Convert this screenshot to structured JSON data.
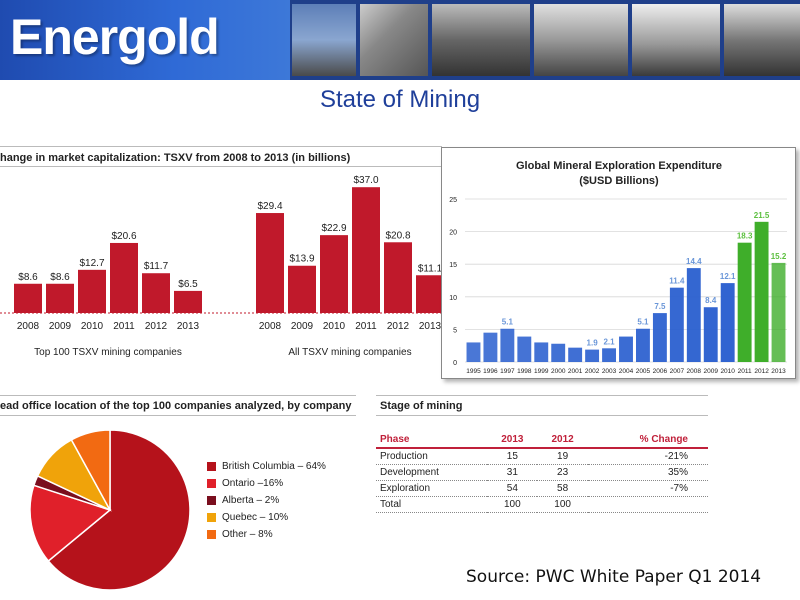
{
  "header": {
    "logo_text": "Energold"
  },
  "page": {
    "title": "State of Mining",
    "source": "Source: PWC White Paper Q1 2014"
  },
  "tsxv": {
    "title": "hange in market capitalization: TSXV from 2008 to 2013 (in billions)",
    "colors": {
      "bar": "#c0192b"
    }
  },
  "pie_section": {
    "title": "ead office location of the top 100 companies analyzed, by company"
  },
  "stage": {
    "title": "Stage of mining",
    "headers": [
      "Phase",
      "2013",
      "2012",
      "% Change"
    ],
    "rows": [
      [
        "Production",
        "15",
        "19",
        "-21%"
      ],
      [
        "Development",
        "31",
        "23",
        "35%"
      ],
      [
        "Exploration",
        "54",
        "58",
        "-7%"
      ],
      [
        "Total",
        "100",
        "100",
        ""
      ]
    ]
  },
  "chart_data": [
    {
      "type": "bar",
      "categories": [
        "2008",
        "2009",
        "2010",
        "2011",
        "2012",
        "2013"
      ],
      "values": [
        8.6,
        8.6,
        12.7,
        20.6,
        11.7,
        6.5
      ],
      "value_labels": [
        "$8.6",
        "$8.6",
        "$12.7",
        "$20.6",
        "$11.7",
        "$6.5"
      ],
      "xlabel": "Top 100 TSXV mining companies",
      "color": "#c0192b"
    },
    {
      "type": "bar",
      "categories": [
        "2008",
        "2009",
        "2010",
        "2011",
        "2012",
        "2013"
      ],
      "values": [
        29.4,
        13.9,
        22.9,
        37.0,
        20.8,
        11.1
      ],
      "value_labels": [
        "$29.4",
        "$13.9",
        "$22.9",
        "$37.0",
        "$20.8",
        "$11.1"
      ],
      "xlabel": "All TSXV mining companies",
      "color": "#c0192b"
    },
    {
      "type": "bar",
      "title": "Global Mineral Exploration Expenditure",
      "subtitle": "($USD Billions)",
      "categories": [
        "1995",
        "1996",
        "1997",
        "1998",
        "1999",
        "2000",
        "2001",
        "2002",
        "2003",
        "2004",
        "2005",
        "2006",
        "2007",
        "2008",
        "2009",
        "2010",
        "2011",
        "2012",
        "2013"
      ],
      "values": [
        3.0,
        4.5,
        5.1,
        3.9,
        3.0,
        2.8,
        2.2,
        1.9,
        2.1,
        3.9,
        5.1,
        7.5,
        11.4,
        14.4,
        8.4,
        12.1,
        18.3,
        21.5,
        15.2
      ],
      "value_labels": [
        "",
        "",
        "5.1",
        "",
        "",
        "",
        "",
        "1.9",
        "2.1",
        "",
        "5.1",
        "7.5",
        "11.4",
        "14.4",
        "8.4",
        "12.1",
        "18.3",
        "21.5",
        "15.2"
      ],
      "ylim": [
        0,
        25
      ],
      "yticks": [
        "0",
        "5",
        "10",
        "15",
        "20",
        "25"
      ],
      "grid": true,
      "colors": {
        "blue": "#2a5fcf",
        "green": "#3fae2a",
        "label": "#6a96d8"
      }
    },
    {
      "type": "pie",
      "labels": [
        "British Columbia – 64%",
        "Ontario –16%",
        "Alberta – 2%",
        "Quebec – 10%",
        "Other – 8%"
      ],
      "values": [
        64,
        16,
        2,
        10,
        8
      ],
      "colors": [
        "#b5121b",
        "#e0202a",
        "#7a0e1e",
        "#f0a30a",
        "#f26a12"
      ],
      "legend": "right"
    }
  ]
}
